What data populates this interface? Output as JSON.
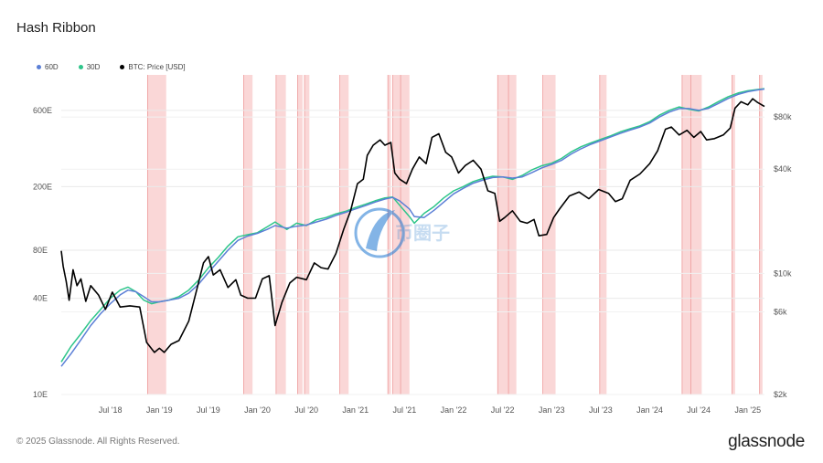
{
  "header": {
    "title": "Hash Ribbon"
  },
  "legend": [
    {
      "label": "60D",
      "color": "#5b7fd6"
    },
    {
      "label": "30D",
      "color": "#2ec58a"
    },
    {
      "label": "BTC: Price [USD]",
      "color": "#000000"
    }
  ],
  "footer": {
    "copyright": "© 2025 Glassnode. All Rights Reserved.",
    "brand": "glassnode"
  },
  "watermark": {
    "text": "币圈子"
  },
  "chart_data": {
    "type": "line",
    "title": "Hash Ribbon",
    "x_range": [
      2018.0,
      2025.17
    ],
    "x_ticks": [
      {
        "t": 2018.5,
        "label": "Jul '18"
      },
      {
        "t": 2019.0,
        "label": "Jan '19"
      },
      {
        "t": 2019.5,
        "label": "Jul '19"
      },
      {
        "t": 2020.0,
        "label": "Jan '20"
      },
      {
        "t": 2020.5,
        "label": "Jul '20"
      },
      {
        "t": 2021.0,
        "label": "Jan '21"
      },
      {
        "t": 2021.5,
        "label": "Jul '21"
      },
      {
        "t": 2022.0,
        "label": "Jan '22"
      },
      {
        "t": 2022.5,
        "label": "Jul '22"
      },
      {
        "t": 2023.0,
        "label": "Jan '23"
      },
      {
        "t": 2023.5,
        "label": "Jul '23"
      },
      {
        "t": 2024.0,
        "label": "Jan '24"
      },
      {
        "t": 2024.5,
        "label": "Jul '24"
      },
      {
        "t": 2025.0,
        "label": "Jan '25"
      }
    ],
    "left_axis": {
      "unit": "hash rate (E)",
      "scale": "log",
      "ticks": [
        {
          "v": 10,
          "label": "10E"
        },
        {
          "v": 40,
          "label": "40E"
        },
        {
          "v": 80,
          "label": "80E"
        },
        {
          "v": 200,
          "label": "200E"
        },
        {
          "v": 600,
          "label": "600E"
        }
      ],
      "range": [
        10,
        1000
      ]
    },
    "right_axis": {
      "unit": "USD",
      "scale": "log",
      "ticks": [
        {
          "v": 2000,
          "label": "$2k"
        },
        {
          "v": 6000,
          "label": "$6k"
        },
        {
          "v": 10000,
          "label": "$10k"
        },
        {
          "v": 40000,
          "label": "$40k"
        },
        {
          "v": 80000,
          "label": "$80k"
        }
      ],
      "range": [
        2000,
        140000
      ]
    },
    "capitulation_bands": [
      [
        2018.88,
        2019.07
      ],
      [
        2019.86,
        2019.95
      ],
      [
        2020.19,
        2020.29
      ],
      [
        2020.41,
        2020.46
      ],
      [
        2020.48,
        2020.53
      ],
      [
        2020.84,
        2020.93
      ],
      [
        2021.33,
        2021.36
      ],
      [
        2021.38,
        2021.46
      ],
      [
        2021.46,
        2021.55
      ],
      [
        2022.45,
        2022.56
      ],
      [
        2022.56,
        2022.64
      ],
      [
        2022.91,
        2023.04
      ],
      [
        2023.49,
        2023.56
      ],
      [
        2024.33,
        2024.42
      ],
      [
        2024.42,
        2024.53
      ],
      [
        2024.84,
        2024.87
      ],
      [
        2025.12,
        2025.15
      ]
    ],
    "series": [
      {
        "name": "30D",
        "axis": "left",
        "color": "#2ec58a",
        "points": [
          [
            2018.0,
            16
          ],
          [
            2018.1,
            20
          ],
          [
            2018.2,
            24
          ],
          [
            2018.3,
            29
          ],
          [
            2018.4,
            34
          ],
          [
            2018.5,
            40
          ],
          [
            2018.6,
            45
          ],
          [
            2018.68,
            47
          ],
          [
            2018.76,
            44
          ],
          [
            2018.84,
            39
          ],
          [
            2018.92,
            37
          ],
          [
            2019.0,
            38
          ],
          [
            2019.1,
            39
          ],
          [
            2019.2,
            41
          ],
          [
            2019.3,
            45
          ],
          [
            2019.4,
            52
          ],
          [
            2019.5,
            62
          ],
          [
            2019.6,
            72
          ],
          [
            2019.7,
            85
          ],
          [
            2019.8,
            97
          ],
          [
            2019.9,
            100
          ],
          [
            2020.0,
            103
          ],
          [
            2020.1,
            112
          ],
          [
            2020.18,
            120
          ],
          [
            2020.3,
            108
          ],
          [
            2020.4,
            118
          ],
          [
            2020.5,
            114
          ],
          [
            2020.6,
            124
          ],
          [
            2020.7,
            128
          ],
          [
            2020.8,
            135
          ],
          [
            2020.9,
            140
          ],
          [
            2021.0,
            148
          ],
          [
            2021.1,
            155
          ],
          [
            2021.2,
            163
          ],
          [
            2021.3,
            170
          ],
          [
            2021.38,
            172
          ],
          [
            2021.45,
            153
          ],
          [
            2021.55,
            130
          ],
          [
            2021.6,
            118
          ],
          [
            2021.7,
            136
          ],
          [
            2021.8,
            150
          ],
          [
            2021.9,
            170
          ],
          [
            2022.0,
            188
          ],
          [
            2022.1,
            200
          ],
          [
            2022.2,
            215
          ],
          [
            2022.3,
            225
          ],
          [
            2022.4,
            232
          ],
          [
            2022.5,
            230
          ],
          [
            2022.6,
            222
          ],
          [
            2022.7,
            235
          ],
          [
            2022.8,
            255
          ],
          [
            2022.9,
            270
          ],
          [
            2023.0,
            280
          ],
          [
            2023.1,
            300
          ],
          [
            2023.2,
            330
          ],
          [
            2023.3,
            355
          ],
          [
            2023.4,
            375
          ],
          [
            2023.5,
            395
          ],
          [
            2023.6,
            415
          ],
          [
            2023.7,
            440
          ],
          [
            2023.8,
            460
          ],
          [
            2023.9,
            480
          ],
          [
            2024.0,
            510
          ],
          [
            2024.1,
            560
          ],
          [
            2024.2,
            600
          ],
          [
            2024.3,
            630
          ],
          [
            2024.4,
            610
          ],
          [
            2024.5,
            595
          ],
          [
            2024.6,
            630
          ],
          [
            2024.7,
            680
          ],
          [
            2024.8,
            730
          ],
          [
            2024.9,
            770
          ],
          [
            2025.0,
            795
          ],
          [
            2025.1,
            810
          ],
          [
            2025.17,
            820
          ]
        ]
      },
      {
        "name": "60D",
        "axis": "left",
        "color": "#5b7fd6",
        "points": [
          [
            2018.0,
            15
          ],
          [
            2018.1,
            18
          ],
          [
            2018.2,
            22
          ],
          [
            2018.3,
            27
          ],
          [
            2018.4,
            32
          ],
          [
            2018.5,
            37
          ],
          [
            2018.6,
            42
          ],
          [
            2018.68,
            45
          ],
          [
            2018.76,
            44
          ],
          [
            2018.84,
            41
          ],
          [
            2018.92,
            38
          ],
          [
            2019.0,
            38
          ],
          [
            2019.1,
            39
          ],
          [
            2019.2,
            40
          ],
          [
            2019.3,
            43
          ],
          [
            2019.4,
            49
          ],
          [
            2019.5,
            58
          ],
          [
            2019.6,
            68
          ],
          [
            2019.7,
            80
          ],
          [
            2019.8,
            92
          ],
          [
            2019.9,
            98
          ],
          [
            2020.0,
            102
          ],
          [
            2020.1,
            108
          ],
          [
            2020.18,
            114
          ],
          [
            2020.3,
            110
          ],
          [
            2020.4,
            113
          ],
          [
            2020.5,
            115
          ],
          [
            2020.6,
            120
          ],
          [
            2020.7,
            125
          ],
          [
            2020.8,
            132
          ],
          [
            2020.9,
            138
          ],
          [
            2021.0,
            145
          ],
          [
            2021.1,
            152
          ],
          [
            2021.2,
            160
          ],
          [
            2021.3,
            167
          ],
          [
            2021.38,
            171
          ],
          [
            2021.45,
            163
          ],
          [
            2021.55,
            145
          ],
          [
            2021.6,
            130
          ],
          [
            2021.7,
            128
          ],
          [
            2021.8,
            142
          ],
          [
            2021.9,
            160
          ],
          [
            2022.0,
            180
          ],
          [
            2022.1,
            195
          ],
          [
            2022.2,
            210
          ],
          [
            2022.3,
            220
          ],
          [
            2022.4,
            228
          ],
          [
            2022.5,
            230
          ],
          [
            2022.6,
            226
          ],
          [
            2022.7,
            230
          ],
          [
            2022.8,
            245
          ],
          [
            2022.9,
            262
          ],
          [
            2023.0,
            275
          ],
          [
            2023.1,
            292
          ],
          [
            2023.2,
            320
          ],
          [
            2023.3,
            345
          ],
          [
            2023.4,
            368
          ],
          [
            2023.5,
            388
          ],
          [
            2023.6,
            408
          ],
          [
            2023.7,
            430
          ],
          [
            2023.8,
            452
          ],
          [
            2023.9,
            472
          ],
          [
            2024.0,
            500
          ],
          [
            2024.1,
            545
          ],
          [
            2024.2,
            585
          ],
          [
            2024.3,
            615
          ],
          [
            2024.4,
            615
          ],
          [
            2024.5,
            600
          ],
          [
            2024.6,
            618
          ],
          [
            2024.7,
            662
          ],
          [
            2024.8,
            712
          ],
          [
            2024.9,
            755
          ],
          [
            2025.0,
            785
          ],
          [
            2025.1,
            805
          ],
          [
            2025.17,
            815
          ]
        ]
      },
      {
        "name": "BTC: Price [USD]",
        "axis": "right",
        "color": "#000000",
        "points": [
          [
            2018.0,
            13500
          ],
          [
            2018.02,
            11000
          ],
          [
            2018.05,
            9000
          ],
          [
            2018.08,
            7000
          ],
          [
            2018.12,
            10500
          ],
          [
            2018.16,
            8500
          ],
          [
            2018.2,
            9300
          ],
          [
            2018.25,
            6900
          ],
          [
            2018.3,
            8500
          ],
          [
            2018.38,
            7500
          ],
          [
            2018.45,
            6200
          ],
          [
            2018.52,
            7800
          ],
          [
            2018.6,
            6400
          ],
          [
            2018.7,
            6500
          ],
          [
            2018.8,
            6400
          ],
          [
            2018.87,
            4000
          ],
          [
            2018.95,
            3500
          ],
          [
            2019.0,
            3700
          ],
          [
            2019.05,
            3500
          ],
          [
            2019.12,
            3900
          ],
          [
            2019.2,
            4100
          ],
          [
            2019.3,
            5300
          ],
          [
            2019.38,
            8000
          ],
          [
            2019.45,
            11500
          ],
          [
            2019.5,
            12500
          ],
          [
            2019.55,
            9800
          ],
          [
            2019.62,
            10500
          ],
          [
            2019.7,
            8300
          ],
          [
            2019.78,
            9200
          ],
          [
            2019.83,
            7500
          ],
          [
            2019.9,
            7200
          ],
          [
            2019.98,
            7200
          ],
          [
            2020.05,
            9300
          ],
          [
            2020.12,
            9700
          ],
          [
            2020.18,
            5000
          ],
          [
            2020.25,
            6800
          ],
          [
            2020.33,
            8800
          ],
          [
            2020.4,
            9500
          ],
          [
            2020.5,
            9200
          ],
          [
            2020.58,
            11500
          ],
          [
            2020.65,
            10800
          ],
          [
            2020.72,
            10600
          ],
          [
            2020.8,
            13000
          ],
          [
            2020.88,
            18000
          ],
          [
            2020.95,
            23000
          ],
          [
            2021.02,
            33000
          ],
          [
            2021.08,
            35000
          ],
          [
            2021.12,
            48000
          ],
          [
            2021.18,
            55000
          ],
          [
            2021.25,
            59000
          ],
          [
            2021.3,
            55000
          ],
          [
            2021.36,
            57000
          ],
          [
            2021.4,
            38000
          ],
          [
            2021.45,
            35000
          ],
          [
            2021.52,
            33000
          ],
          [
            2021.58,
            40000
          ],
          [
            2021.65,
            47000
          ],
          [
            2021.72,
            43000
          ],
          [
            2021.78,
            61000
          ],
          [
            2021.85,
            64000
          ],
          [
            2021.92,
            50000
          ],
          [
            2021.98,
            47000
          ],
          [
            2022.05,
            38000
          ],
          [
            2022.12,
            42000
          ],
          [
            2022.2,
            45000
          ],
          [
            2022.28,
            40000
          ],
          [
            2022.35,
            30000
          ],
          [
            2022.42,
            29000
          ],
          [
            2022.47,
            20000
          ],
          [
            2022.52,
            21000
          ],
          [
            2022.6,
            23000
          ],
          [
            2022.68,
            20000
          ],
          [
            2022.75,
            19500
          ],
          [
            2022.82,
            20500
          ],
          [
            2022.87,
            16500
          ],
          [
            2022.95,
            16800
          ],
          [
            2023.02,
            21000
          ],
          [
            2023.08,
            23500
          ],
          [
            2023.18,
            28000
          ],
          [
            2023.28,
            29500
          ],
          [
            2023.38,
            27000
          ],
          [
            2023.48,
            30500
          ],
          [
            2023.58,
            29000
          ],
          [
            2023.65,
            26000
          ],
          [
            2023.72,
            27000
          ],
          [
            2023.8,
            34500
          ],
          [
            2023.9,
            37500
          ],
          [
            2024.0,
            43000
          ],
          [
            2024.08,
            51000
          ],
          [
            2024.16,
            68000
          ],
          [
            2024.22,
            70000
          ],
          [
            2024.3,
            63000
          ],
          [
            2024.38,
            67000
          ],
          [
            2024.45,
            61000
          ],
          [
            2024.52,
            66000
          ],
          [
            2024.58,
            59000
          ],
          [
            2024.66,
            60000
          ],
          [
            2024.75,
            63000
          ],
          [
            2024.82,
            69000
          ],
          [
            2024.87,
            90000
          ],
          [
            2024.93,
            98000
          ],
          [
            2025.0,
            94000
          ],
          [
            2025.05,
            102000
          ],
          [
            2025.1,
            97000
          ],
          [
            2025.17,
            92000
          ]
        ]
      }
    ]
  }
}
